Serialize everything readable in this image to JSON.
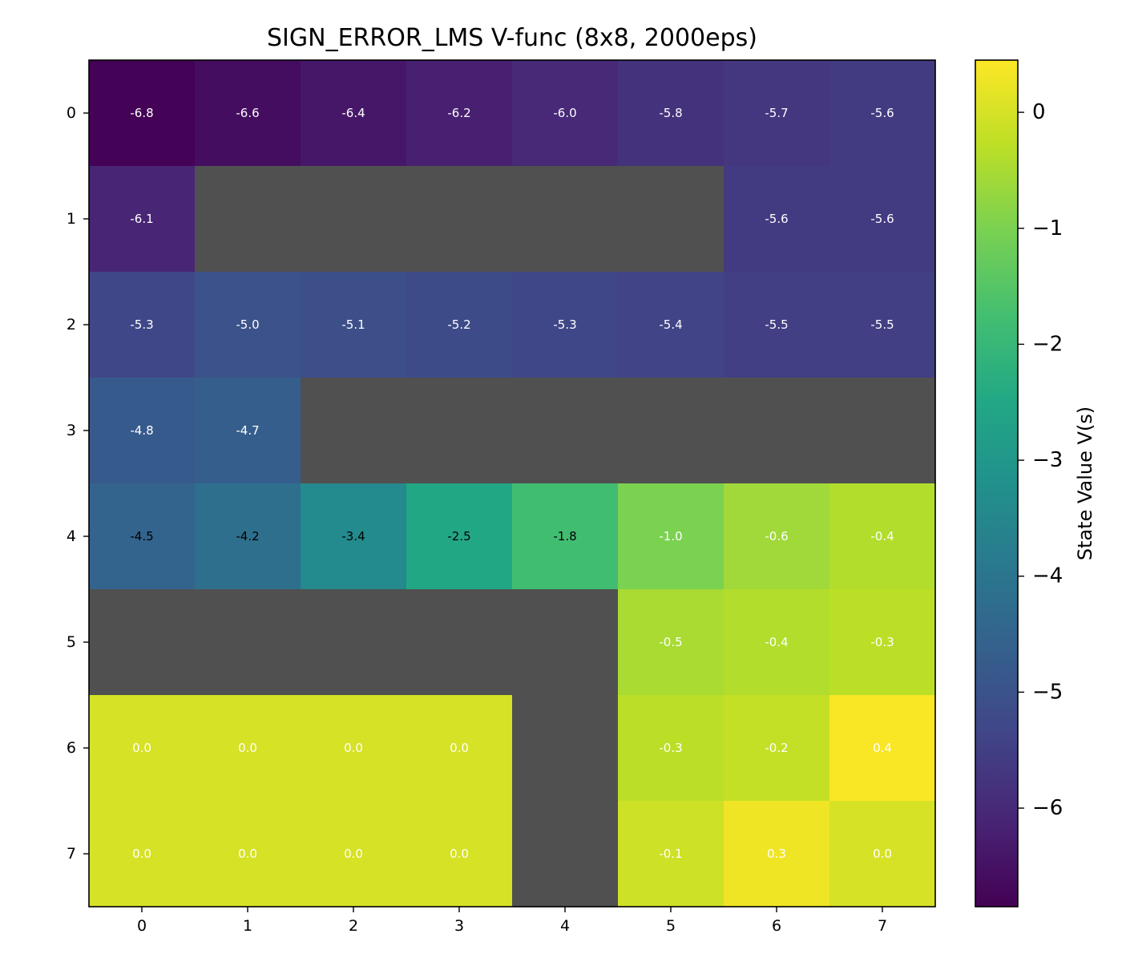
{
  "chart_data": {
    "type": "heatmap",
    "title": "SIGN_ERROR_LMS V-func (8x8, 2000eps)",
    "colorbar_label": "State Value V(s)",
    "colormap": "viridis",
    "wall_color": "#505050",
    "x_ticks": [
      "0",
      "1",
      "2",
      "3",
      "4",
      "5",
      "6",
      "7"
    ],
    "y_ticks": [
      "0",
      "1",
      "2",
      "3",
      "4",
      "5",
      "6",
      "7"
    ],
    "colorbar_range": [
      -6.85,
      0.45
    ],
    "colorbar_ticks": [
      0,
      -1,
      -2,
      -3,
      -4,
      -5,
      -6
    ],
    "colorbar_tick_labels": [
      "0",
      "−1",
      "−2",
      "−3",
      "−4",
      "−5",
      "−6"
    ],
    "values": [
      [
        -6.8,
        -6.6,
        -6.4,
        -6.2,
        -6.0,
        -5.8,
        -5.7,
        -5.6
      ],
      [
        -6.1,
        null,
        null,
        null,
        null,
        null,
        -5.6,
        -5.6
      ],
      [
        -5.3,
        -5.0,
        -5.1,
        -5.2,
        -5.3,
        -5.4,
        -5.5,
        -5.5
      ],
      [
        -4.8,
        -4.7,
        null,
        null,
        null,
        null,
        null,
        null
      ],
      [
        -4.5,
        -4.2,
        -3.4,
        -2.5,
        -1.8,
        -1.0,
        -0.6,
        -0.4
      ],
      [
        null,
        null,
        null,
        null,
        null,
        -0.5,
        -0.4,
        -0.3
      ],
      [
        0.0,
        0.0,
        0.0,
        0.0,
        null,
        -0.3,
        -0.2,
        0.4
      ],
      [
        0.0,
        0.0,
        0.0,
        0.0,
        null,
        -0.1,
        0.3,
        0.0
      ]
    ],
    "labels": [
      [
        "-6.8",
        "-6.6",
        "-6.4",
        "-6.2",
        "-6.0",
        "-5.8",
        "-5.7",
        "-5.6"
      ],
      [
        "-6.1",
        "",
        "",
        "",
        "",
        "",
        "-5.6",
        "-5.6"
      ],
      [
        "-5.3",
        "-5.0",
        "-5.1",
        "-5.2",
        "-5.3",
        "-5.4",
        "-5.5",
        "-5.5"
      ],
      [
        "-4.8",
        "-4.7",
        "",
        "",
        "",
        "",
        "",
        ""
      ],
      [
        "-4.5",
        "-4.2",
        "-3.4",
        "-2.5",
        "-1.8",
        "-1.0",
        "-0.6",
        "-0.4"
      ],
      [
        "",
        "",
        "",
        "",
        "",
        "-0.5",
        "-0.4",
        "-0.3"
      ],
      [
        "0.0",
        "0.0",
        "0.0",
        "0.0",
        "",
        "-0.3",
        "-0.2",
        "0.4"
      ],
      [
        "0.0",
        "0.0",
        "0.0",
        "0.0",
        "",
        "-0.1",
        "0.3",
        "0.0"
      ]
    ],
    "dark_label_cells": [
      [
        4,
        0
      ],
      [
        4,
        1
      ],
      [
        4,
        2
      ],
      [
        4,
        3
      ],
      [
        4,
        4
      ]
    ]
  }
}
